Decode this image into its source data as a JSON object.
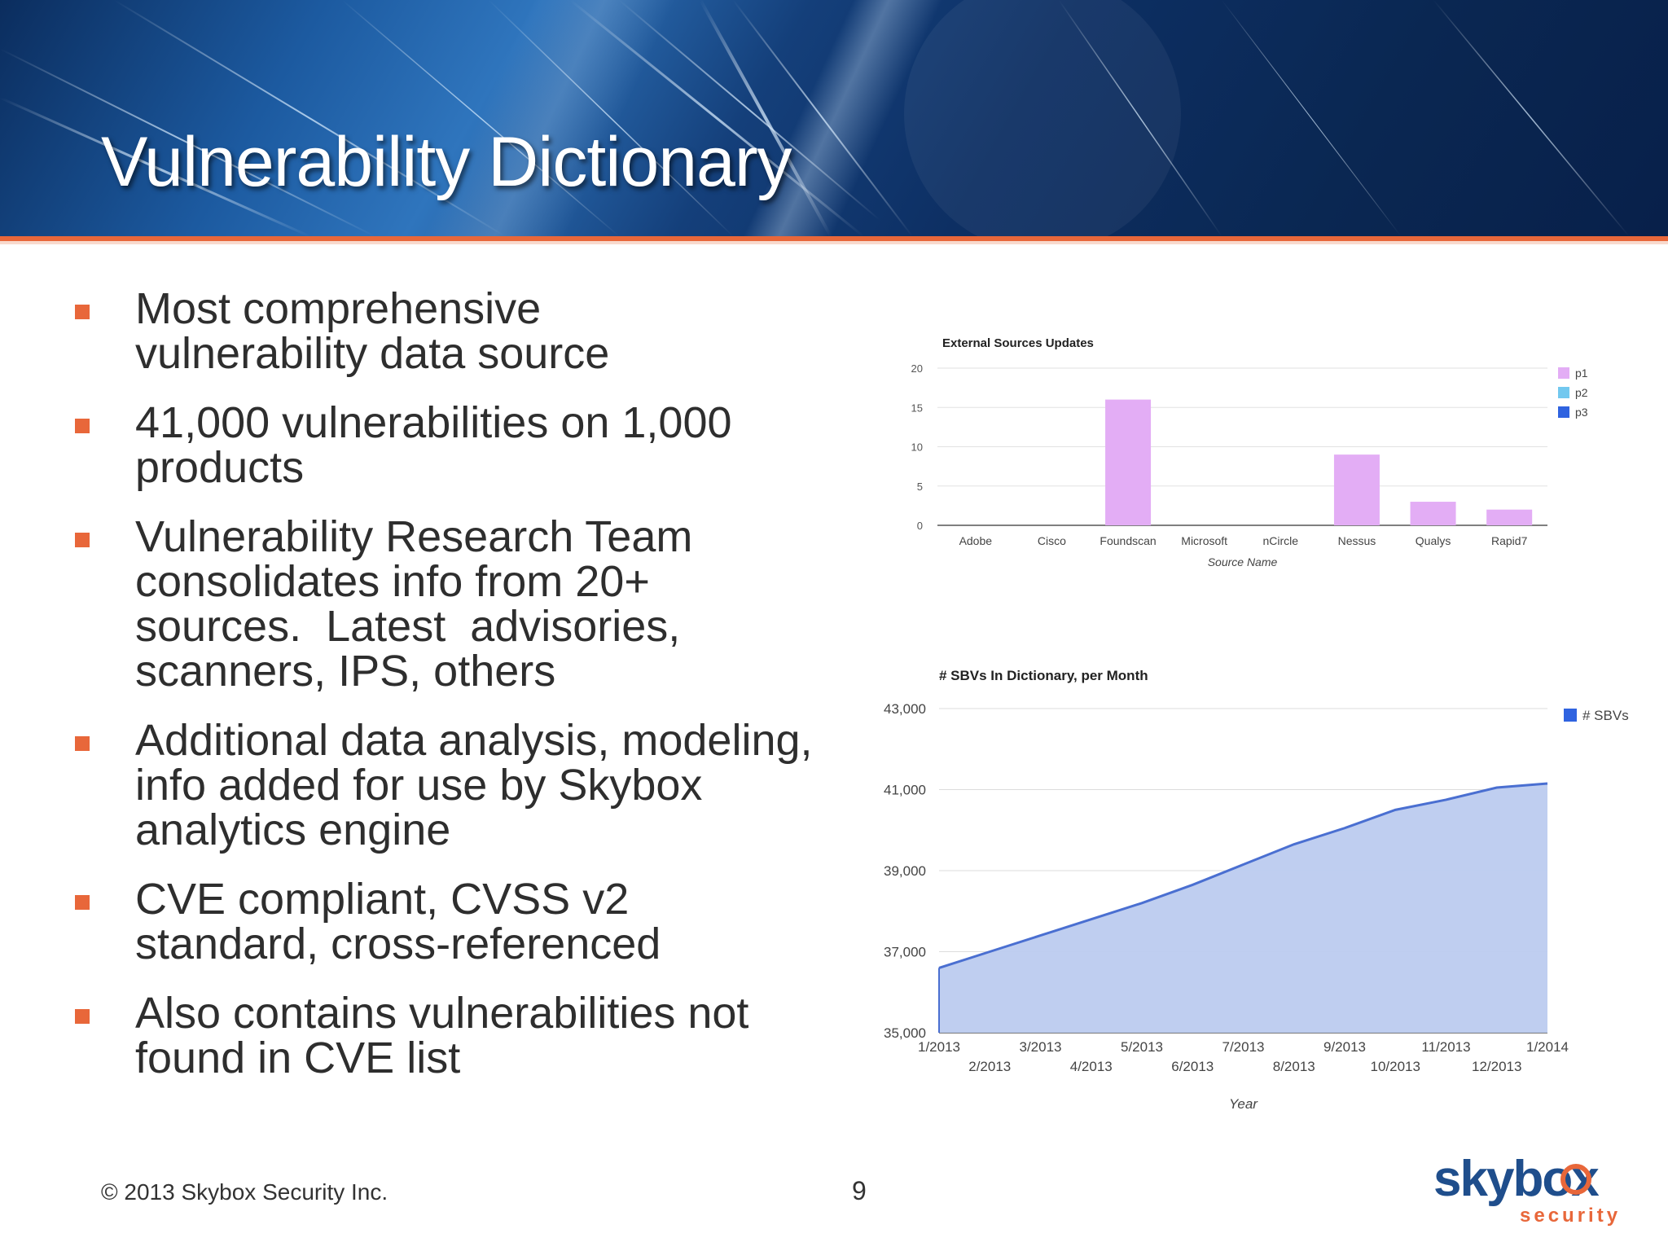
{
  "slide": {
    "title": "Vulnerability Dictionary",
    "bullets": [
      "Most comprehensive vulnerability data source",
      "41,000 vulnerabilities on 1,000 products",
      "Vulnerability Research Team consolidates info from 20+ sources.  Latest  advisories, scanners, IPS, others",
      "Additional data analysis, modeling, info added for use by Skybox analytics engine",
      "CVE compliant, CVSS v2 standard, cross-referenced",
      "Also contains vulnerabilities not found in CVE list"
    ],
    "footer": "© 2013 Skybox Security Inc.",
    "page_number": "9",
    "logo": {
      "wordmark": "skybox",
      "tagline": "security"
    }
  },
  "colors": {
    "accent": "#e8673a",
    "brand_blue": "#1f4e8c",
    "bar_p1": "#e3adf5",
    "line": "#4a6fd1",
    "area": "#bccbef"
  },
  "chart_data": [
    {
      "type": "bar",
      "title": "External Sources Updates",
      "xlabel": "Source Name",
      "ylabel": "",
      "categories": [
        "Adobe",
        "Cisco",
        "Foundscan",
        "Microsoft",
        "nCircle",
        "Nessus",
        "Qualys",
        "Rapid7"
      ],
      "series": [
        {
          "name": "p1",
          "color": "#e3adf5",
          "values": [
            0,
            0,
            16,
            0,
            0,
            9,
            3,
            2
          ]
        },
        {
          "name": "p2",
          "color": "#72c8ef",
          "values": [
            0,
            0,
            0,
            0,
            0,
            0,
            0,
            0
          ]
        },
        {
          "name": "p3",
          "color": "#2f63e0",
          "values": [
            0,
            0,
            0,
            0,
            0,
            0,
            0,
            0
          ]
        }
      ],
      "ylim": [
        0,
        20
      ],
      "yticks": [
        0,
        5,
        10,
        15,
        20
      ],
      "grid": true,
      "legend": "right"
    },
    {
      "type": "area",
      "title": "# SBVs In Dictionary, per Month",
      "xlabel": "Year",
      "ylabel": "",
      "x": [
        "1/2013",
        "2/2013",
        "3/2013",
        "4/2013",
        "5/2013",
        "6/2013",
        "7/2013",
        "8/2013",
        "9/2013",
        "10/2013",
        "11/2013",
        "12/2013",
        "1/2014"
      ],
      "series": [
        {
          "name": "# SBVs",
          "color": "#4a6fd1",
          "values": [
            36600,
            37000,
            37400,
            37800,
            38200,
            38650,
            39150,
            39650,
            40050,
            40500,
            40750,
            41050,
            41150
          ]
        }
      ],
      "ylim": [
        35000,
        43000
      ],
      "yticks": [
        "35,000",
        "37,000",
        "39,000",
        "41,000",
        "43,000"
      ],
      "ytick_values": [
        35000,
        37000,
        39000,
        41000,
        43000
      ],
      "grid": true,
      "legend": "right"
    }
  ]
}
